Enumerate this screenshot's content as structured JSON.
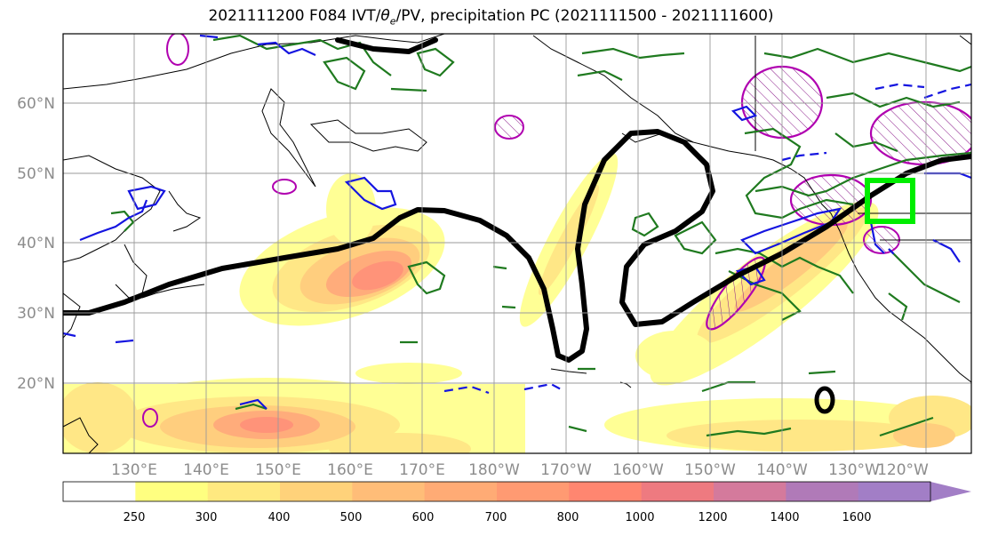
{
  "title": {
    "prefix": "2021111200 F084 IVT/",
    "theta": "θ",
    "theta_sub": "e",
    "suffix": "/PV, precipitation PC (2021111500 - 2021111600)"
  },
  "map": {
    "lat_labels": [
      "60°N",
      "50°N",
      "40°N",
      "30°N",
      "20°N"
    ],
    "lon_labels": [
      "130°E",
      "140°E",
      "150°E",
      "160°E",
      "170°E",
      "180°W",
      "170°W",
      "160°W",
      "150°W",
      "140°W",
      "130°W",
      "120°W"
    ],
    "gridlines": true,
    "colors": {
      "coast": "#000000",
      "pv_contour": "#000000",
      "theta_e_contour": "#1f7a1f",
      "precip_contour": "#1515e0",
      "pc_contour": "#b000b0",
      "target_box": "#00ee00",
      "grid": "#9a9a9a"
    }
  },
  "colorbar": {
    "labels": [
      "250",
      "300",
      "400",
      "500",
      "600",
      "700",
      "800",
      "1000",
      "1200",
      "1400",
      "1600"
    ],
    "colors": [
      "#ffffff",
      "#ffff80",
      "#ffe980",
      "#ffd27a",
      "#ffbd78",
      "#ffab75",
      "#ff9a72",
      "#ff8670",
      "#ee7a80",
      "#d47a9c",
      "#b07ab8",
      "#a27ec6"
    ],
    "extend": "max"
  }
}
